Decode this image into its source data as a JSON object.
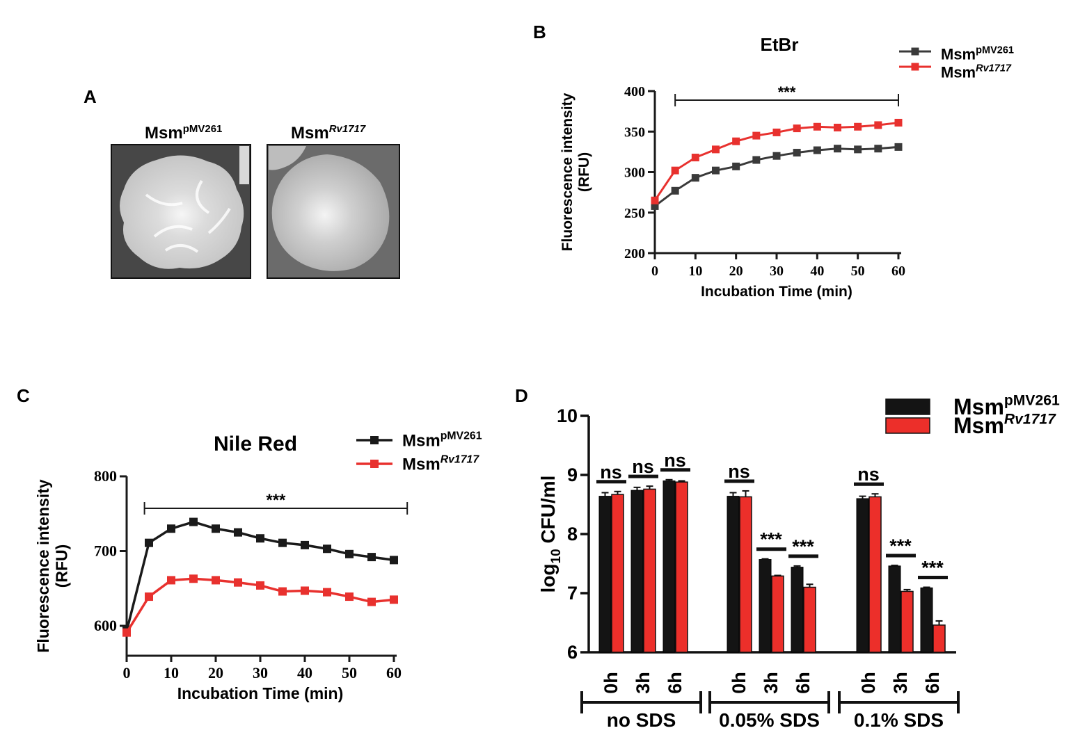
{
  "colors": {
    "black": "#1a1a1a",
    "gray": "#3a3a3a",
    "red": "#e8312e",
    "redbar": "#ec2f2a"
  },
  "panelA": {
    "letter": "A",
    "images": [
      {
        "label_main": "Msm",
        "label_sup": "pMV261"
      },
      {
        "label_main": "Msm",
        "label_sup": "Rv1717"
      }
    ]
  },
  "panelB": {
    "letter": "B"
  },
  "panelC": {
    "letter": "C"
  },
  "panelD": {
    "letter": "D"
  },
  "chart_data": [
    {
      "id": "B",
      "type": "line",
      "title": "EtBr",
      "xlabel": "Incubation Time (min)",
      "ylabel": "Fluorescence intensity (RFU)",
      "ylabel_lines": [
        "Fluorescence intensity",
        "(RFU)"
      ],
      "xlim": [
        0,
        60
      ],
      "ylim": [
        200,
        400
      ],
      "xticks": [
        0,
        10,
        20,
        30,
        40,
        50,
        60
      ],
      "yticks": [
        200,
        250,
        300,
        350,
        400
      ],
      "significance": "***",
      "legend": [
        {
          "main": "Msm",
          "sup": "pMV261",
          "italic": false
        },
        {
          "main": "Msm",
          "sup": "Rv1717",
          "italic": true
        }
      ],
      "x": [
        0,
        5,
        10,
        15,
        20,
        25,
        30,
        35,
        40,
        45,
        50,
        55,
        60
      ],
      "series": [
        {
          "name": "Msm pMV261",
          "color": "#3a3a3a",
          "values": [
            258,
            277,
            293,
            302,
            307,
            315,
            320,
            324,
            327,
            329,
            328,
            329,
            331
          ]
        },
        {
          "name": "Msm Rv1717",
          "color": "#e8312e",
          "values": [
            265,
            302,
            318,
            328,
            338,
            345,
            349,
            354,
            356,
            355,
            356,
            358,
            361
          ]
        }
      ]
    },
    {
      "id": "C",
      "type": "line",
      "title": "Nile Red",
      "xlabel": "Incubation Time (min)",
      "ylabel": "Fluorescence intensity (RFU)",
      "ylabel_lines": [
        "Fluorescence intensity",
        "(RFU)"
      ],
      "xlim": [
        0,
        60
      ],
      "ylim": [
        560,
        800
      ],
      "xticks": [
        0,
        10,
        20,
        30,
        40,
        50,
        60
      ],
      "yticks": [
        600,
        700,
        800
      ],
      "significance": "***",
      "legend": [
        {
          "main": "Msm",
          "sup": "pMV261",
          "italic": false
        },
        {
          "main": "Msm",
          "sup": "Rv1717",
          "italic": true
        }
      ],
      "x": [
        0,
        5,
        10,
        15,
        20,
        25,
        30,
        35,
        40,
        45,
        50,
        55,
        60
      ],
      "series": [
        {
          "name": "Msm pMV261",
          "color": "#1a1a1a",
          "values": [
            593,
            711,
            730,
            739,
            730,
            725,
            717,
            711,
            708,
            703,
            696,
            692,
            688
          ]
        },
        {
          "name": "Msm Rv1717",
          "color": "#e8312e",
          "values": [
            591,
            639,
            661,
            663,
            661,
            658,
            654,
            646,
            647,
            645,
            639,
            632,
            635
          ]
        }
      ]
    },
    {
      "id": "D",
      "type": "bar",
      "title": "",
      "ylabel": "log10 CFU/ml",
      "ylabel_parts": {
        "pre": "log",
        "sub": "10",
        "post": " CFU/ml"
      },
      "ylim": [
        6,
        10
      ],
      "yticks": [
        6,
        7,
        8,
        9,
        10
      ],
      "legend": [
        {
          "main": "Msm",
          "sup": "pMV261",
          "italic": false
        },
        {
          "main": "Msm",
          "sup": "Rv1717",
          "italic": true
        }
      ],
      "groups": [
        {
          "label": "no SDS",
          "timepoints": [
            "0h",
            "3h",
            "6h"
          ],
          "black": [
            8.64,
            8.74,
            8.9
          ],
          "red": [
            8.67,
            8.76,
            8.88
          ],
          "black_err": [
            0.06,
            0.05,
            0.02
          ],
          "red_err": [
            0.05,
            0.05,
            0.02
          ],
          "sig": [
            "ns",
            "ns",
            "ns"
          ]
        },
        {
          "label": "0.05% SDS",
          "timepoints": [
            "0h",
            "3h",
            "6h"
          ],
          "black": [
            8.64,
            7.57,
            7.44
          ],
          "red": [
            8.63,
            7.29,
            7.1
          ],
          "black_err": [
            0.06,
            0.01,
            0.02
          ],
          "red_err": [
            0.1,
            0.01,
            0.05
          ],
          "sig": [
            "ns",
            "***",
            "***"
          ]
        },
        {
          "label": "0.1% SDS",
          "timepoints": [
            "0h",
            "3h",
            "6h"
          ],
          "black": [
            8.6,
            7.46,
            7.09
          ],
          "red": [
            8.63,
            7.03,
            6.46
          ],
          "black_err": [
            0.04,
            0.01,
            0.01
          ],
          "red_err": [
            0.05,
            0.03,
            0.07
          ],
          "sig": [
            "ns",
            "***",
            "***"
          ]
        }
      ]
    }
  ]
}
